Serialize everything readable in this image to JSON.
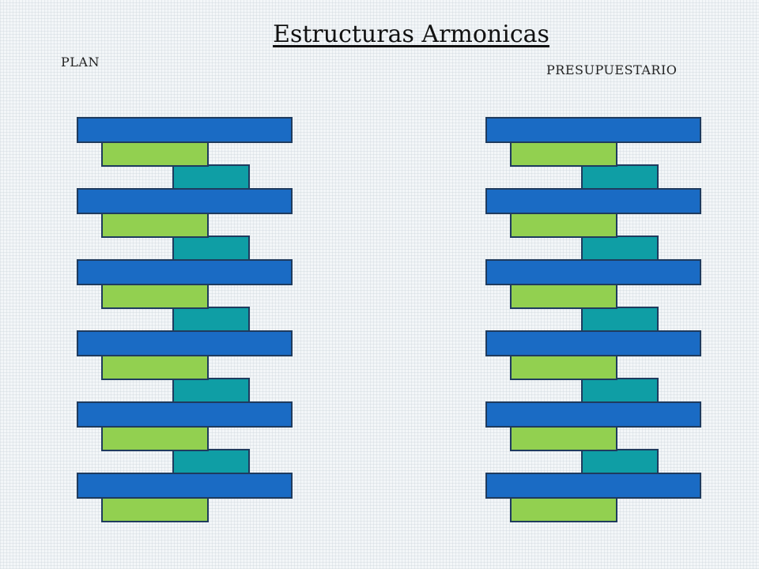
{
  "title": "Estructuras Armonicas",
  "labels": {
    "left": "PLAN",
    "right": "PRESUPUESTARIO"
  },
  "colors": {
    "blue": "#1a6bc4",
    "green": "#92d050",
    "teal": "#0f9ea5",
    "border": "#1f3b5e"
  },
  "stacks": [
    {
      "name": "PLAN",
      "blue_blocks": 6,
      "green_blocks": 6,
      "teal_blocks": 5
    },
    {
      "name": "PRESUPUESTARIO",
      "blue_blocks": 6,
      "green_blocks": 6,
      "teal_blocks": 5
    }
  ]
}
